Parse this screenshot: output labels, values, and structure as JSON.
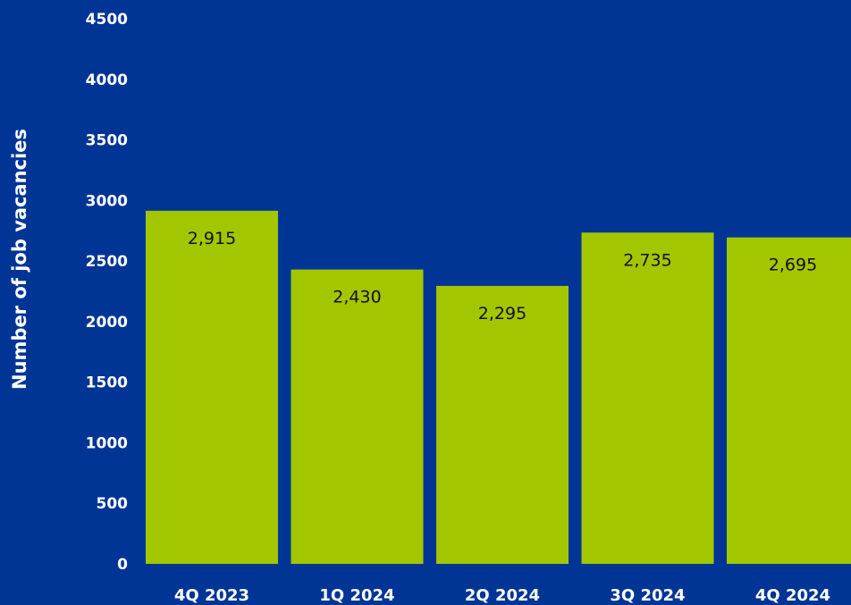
{
  "chart_data": {
    "type": "bar",
    "title": "",
    "xlabel": "",
    "ylabel": "Number of job vacancies",
    "ylim": [
      0,
      4500
    ],
    "yticks": [
      0,
      500,
      1000,
      1500,
      2000,
      2500,
      3000,
      3500,
      4000,
      4500
    ],
    "grid": false,
    "categories": [
      "4Q 2023",
      "1Q 2024",
      "2Q 2024",
      "3Q 2024",
      "4Q 2024"
    ],
    "values": [
      2915,
      2430,
      2295,
      2735,
      2695
    ],
    "data_labels": [
      "2,915",
      "2,430",
      "2,295",
      "2,735",
      "2,695"
    ]
  },
  "colors": {
    "background": "#003595",
    "bar": "#A2C600",
    "axis_text": "#FFFFFF",
    "data_label": "#111111"
  }
}
